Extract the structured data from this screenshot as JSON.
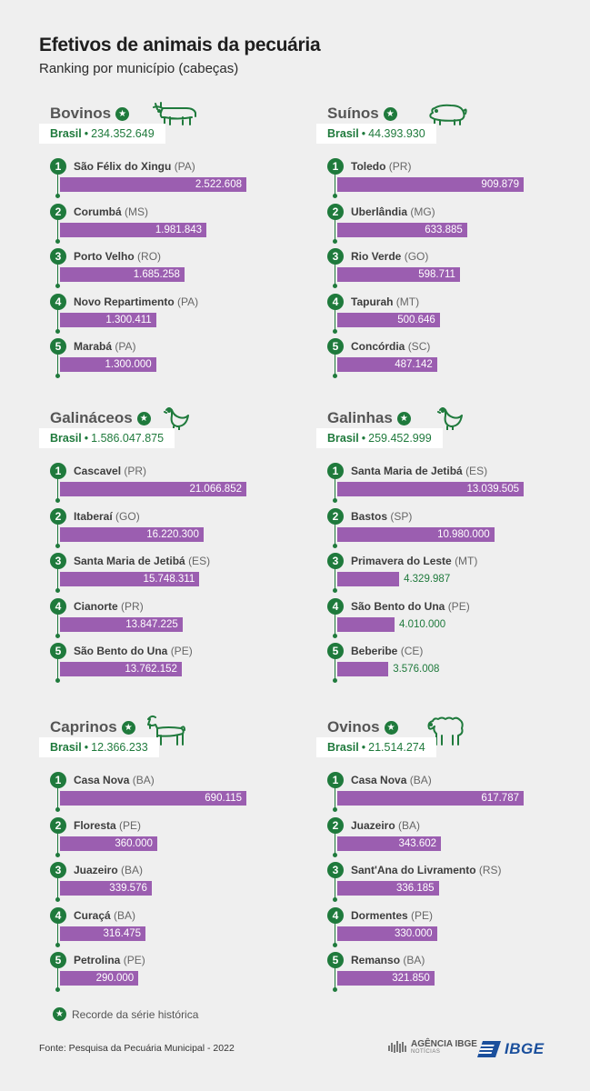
{
  "header": {
    "title": "Efetivos de animais da pecuária",
    "subtitle": "Ranking por município (cabeças)"
  },
  "colors": {
    "green": "#1f7a3c",
    "bar": "#9b5eb0",
    "background": "#efefef"
  },
  "chart_data": [
    {
      "type": "bar",
      "orientation": "horizontal",
      "title": "Bovinos",
      "icon": "cow-icon",
      "record": true,
      "total_label": "Brasil",
      "total_value": "234.352.649",
      "categories": [
        "São Félix do Xingu",
        "Corumbá",
        "Porto Velho",
        "Novo Repartimento",
        "Marabá"
      ],
      "states": [
        "(PA)",
        "(MS)",
        "(RO)",
        "(PA)",
        "(PA)"
      ],
      "values": [
        2522608,
        1981843,
        1685258,
        1300411,
        1300000
      ],
      "value_labels": [
        "2.522.608",
        "1.981.843",
        "1.685.258",
        "1.300.411",
        "1.300.000"
      ]
    },
    {
      "type": "bar",
      "orientation": "horizontal",
      "title": "Suínos",
      "icon": "pig-icon",
      "record": true,
      "total_label": "Brasil",
      "total_value": "44.393.930",
      "categories": [
        "Toledo",
        "Uberlândia",
        "Rio Verde",
        "Tapurah",
        "Concórdia"
      ],
      "states": [
        "(PR)",
        "(MG)",
        "(GO)",
        "(MT)",
        "(SC)"
      ],
      "values": [
        909879,
        633885,
        598711,
        500646,
        487142
      ],
      "value_labels": [
        "909.879",
        "633.885",
        "598.711",
        "500.646",
        "487.142"
      ]
    },
    {
      "type": "bar",
      "orientation": "horizontal",
      "title": "Galináceos",
      "icon": "chicken-icon",
      "record": true,
      "total_label": "Brasil",
      "total_value": "1.586.047.875",
      "categories": [
        "Cascavel",
        "Itaberaí",
        "Santa Maria de Jetibá",
        "Cianorte",
        "São Bento do Una"
      ],
      "states": [
        "(PR)",
        "(GO)",
        "(ES)",
        "(PR)",
        "(PE)"
      ],
      "values": [
        21066852,
        16220300,
        15748311,
        13847225,
        13762152
      ],
      "value_labels": [
        "21.066.852",
        "16.220.300",
        "15.748.311",
        "13.847.225",
        "13.762.152"
      ]
    },
    {
      "type": "bar",
      "orientation": "horizontal",
      "title": "Galinhas",
      "icon": "hen-icon",
      "record": true,
      "total_label": "Brasil",
      "total_value": "259.452.999",
      "categories": [
        "Santa Maria de Jetibá",
        "Bastos",
        "Primavera do Leste",
        "São Bento do Una",
        "Beberibe"
      ],
      "states": [
        "(ES)",
        "(SP)",
        "(MT)",
        "(PE)",
        "(CE)"
      ],
      "values": [
        13039505,
        10980000,
        4329987,
        4010000,
        3576008
      ],
      "value_labels": [
        "13.039.505",
        "10.980.000",
        "4.329.987",
        "4.010.000",
        "3.576.008"
      ]
    },
    {
      "type": "bar",
      "orientation": "horizontal",
      "title": "Caprinos",
      "icon": "goat-icon",
      "record": true,
      "total_label": "Brasil",
      "total_value": "12.366.233",
      "categories": [
        "Casa Nova",
        "Floresta",
        "Juazeiro",
        "Curaçá",
        "Petrolina"
      ],
      "states": [
        "(BA)",
        "(PE)",
        "(BA)",
        "(BA)",
        "(PE)"
      ],
      "values": [
        690115,
        360000,
        339576,
        316475,
        290000
      ],
      "value_labels": [
        "690.115",
        "360.000",
        "339.576",
        "316.475",
        "290.000"
      ]
    },
    {
      "type": "bar",
      "orientation": "horizontal",
      "title": "Ovinos",
      "icon": "sheep-icon",
      "record": true,
      "total_label": "Brasil",
      "total_value": "21.514.274",
      "categories": [
        "Casa Nova",
        "Juazeiro",
        "Sant'Ana do Livramento",
        "Dormentes",
        "Remanso"
      ],
      "states": [
        "(BA)",
        "(BA)",
        "(RS)",
        "(PE)",
        "(BA)"
      ],
      "values": [
        617787,
        343602,
        336185,
        330000,
        321850
      ],
      "value_labels": [
        "617.787",
        "343.602",
        "336.185",
        "330.000",
        "321.850"
      ]
    }
  ],
  "legend": {
    "icon": "star-icon",
    "text": "Recorde da série histórica"
  },
  "footer": {
    "source": "Fonte: Pesquisa da Pecuária Municipal - 2022",
    "agencia_logo": "AGÊNCIA IBGE",
    "agencia_sub": "NOTÍCIAS",
    "ibge_logo": "IBGE"
  }
}
